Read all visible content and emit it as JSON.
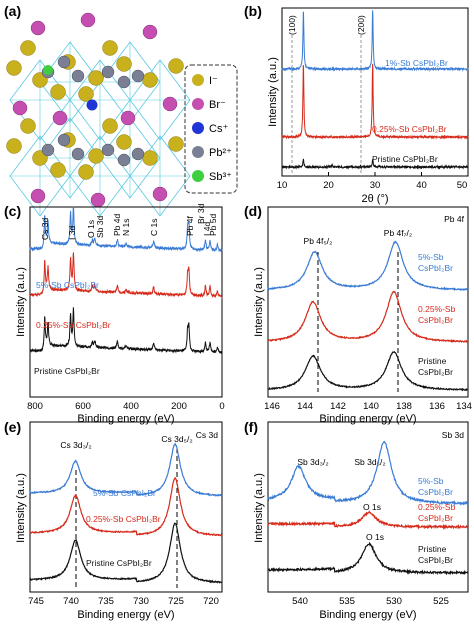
{
  "panels": {
    "a": {
      "label": "(a)",
      "legend": [
        {
          "name": "I⁻",
          "color": "#c9b11d"
        },
        {
          "name": "Br⁻",
          "color": "#c44fb1"
        },
        {
          "name": "Cs⁺",
          "color": "#1f35d6"
        },
        {
          "name": "Pb²⁺",
          "color": "#7a7f93"
        },
        {
          "name": "Sb³⁺",
          "color": "#3fce3f"
        }
      ]
    },
    "b": {
      "label": "(b)",
      "xlabel": "2θ (°)",
      "ylabel": "Intensity (a.u.)",
      "x_ticks": [
        "10",
        "20",
        "30",
        "40",
        "50"
      ],
      "peak_labels": [
        "(100)",
        "(200)"
      ],
      "series_labels": [
        "1%-Sb CsPbI₂Br",
        "0.25%-Sb CsPbI₂Br",
        "Pristine CsPbI₂Br"
      ]
    },
    "c": {
      "label": "(c)",
      "xlabel": "Binding energy (eV)",
      "ylabel": "Intensity (a.u.)",
      "x_ticks": [
        "800",
        "600",
        "400",
        "200",
        "0"
      ],
      "peak_labels": [
        "Cs 3d",
        "I 3d",
        "O 1s",
        "Sb 3d",
        "Pb 4d",
        "N 1s",
        "C 1s",
        "Pb 4f",
        "Br 3d",
        "I 4d",
        "Pb 5d"
      ],
      "series_labels": [
        "5%-Sb CsPbI₂Br",
        "0.25%-Sb CsPbI₂Br",
        "Pristine CsPbI₂Br"
      ]
    },
    "d": {
      "label": "(d)",
      "title": "Pb 4f",
      "xlabel": "Binding energy (eV)",
      "ylabel": "Intensity (a.u.)",
      "x_ticks": [
        "146",
        "144",
        "142",
        "140",
        "138",
        "136",
        "134"
      ],
      "peak_labels": [
        "Pb 4f₇/₂",
        "Pb 4f₅/₂"
      ],
      "series_labels": [
        [
          "5%-Sb",
          "CsPbI₂Br"
        ],
        [
          "0.25%-Sb",
          "CsPbI₂Br"
        ],
        [
          "Pristine",
          "CsPbI₂Br"
        ]
      ]
    },
    "e": {
      "label": "(e)",
      "title": "Cs 3d",
      "xlabel": "Binding energy (eV)",
      "ylabel": "Intensity (a.u.)",
      "x_ticks": [
        "745",
        "740",
        "735",
        "730",
        "725",
        "720"
      ],
      "peak_labels": [
        "Cs 3d₃/₂",
        "Cs 3d₅/₂"
      ],
      "series_labels": [
        "5%-Sb CsPbI₂Br",
        "0.25%-Sb CsPbI₂Br",
        "Pristine CsPbI₂Br"
      ]
    },
    "f": {
      "label": "(f)",
      "title": "Sb 3d",
      "xlabel": "Binding energy (eV)",
      "ylabel": "Intensity (a.u.)",
      "x_ticks": [
        "540",
        "535",
        "530",
        "525"
      ],
      "peak_labels": [
        "Sb 3d₃/₂",
        "Sb 3d₅/₂",
        "O 1s",
        "O 1s"
      ],
      "series_labels": [
        [
          "5%-Sb",
          "CsPbI₂Br"
        ],
        [
          "0.25%-Sb",
          "CsPbI₂Br"
        ],
        [
          "Pristine",
          "CsPbI₂Br"
        ]
      ]
    }
  },
  "colors": {
    "blue": "#3a7bd5",
    "red": "#d62a1b",
    "black": "#111111"
  },
  "chart_data": [
    {
      "panel": "b",
      "type": "line",
      "xlim": [
        10,
        50
      ],
      "series": [
        {
          "name": "1%-Sb CsPbI₂Br",
          "peaks": [
            [
              14.6,
              1.0
            ],
            [
              29.5,
              1.0
            ]
          ],
          "baseline": 0.58
        },
        {
          "name": "0.25%-Sb CsPbI₂Br",
          "peaks": [
            [
              14.6,
              1.0
            ],
            [
              29.5,
              1.0
            ]
          ],
          "baseline": 0.33
        },
        {
          "name": "Pristine CsPbI₂Br",
          "peaks": [
            [
              14.6,
              0.22
            ],
            [
              20.8,
              0.05
            ],
            [
              29.5,
              0.22
            ],
            [
              31.0,
              0.04
            ]
          ],
          "baseline": 0.06
        }
      ]
    },
    {
      "panel": "c",
      "type": "line",
      "xlim": [
        800,
        0
      ],
      "peaks_eV": [
        739,
        725,
        631,
        619,
        540,
        530,
        436,
        400,
        285,
        143,
        138,
        69,
        50,
        19
      ]
    },
    {
      "panel": "d",
      "type": "line",
      "xlim": [
        146,
        134
      ],
      "peaks_eV": [
        143.2,
        138.4
      ],
      "series": [
        {
          "name": "5%-Sb CsPbI₂Br",
          "shift": 0.0
        },
        {
          "name": "0.25%-Sb CsPbI₂Br",
          "shift": 0.1
        },
        {
          "name": "Pristine CsPbI₂Br",
          "shift": 0.1
        }
      ]
    },
    {
      "panel": "e",
      "type": "line",
      "xlim": [
        745,
        718
      ],
      "peaks_eV": [
        738.6,
        724.6
      ]
    },
    {
      "panel": "f",
      "type": "line",
      "xlim": [
        543,
        522
      ],
      "series": [
        {
          "name": "5%-Sb CsPbI₂Br",
          "peaks": [
            [
              539.8,
              0.55
            ],
            [
              530.8,
              1.0
            ]
          ]
        },
        {
          "name": "0.25%-Sb CsPbI₂Br",
          "peaks": [
            [
              532.4,
              0.35
            ]
          ]
        },
        {
          "name": "Pristine CsPbI₂Br",
          "peaks": [
            [
              532.4,
              0.7
            ]
          ]
        }
      ]
    }
  ]
}
